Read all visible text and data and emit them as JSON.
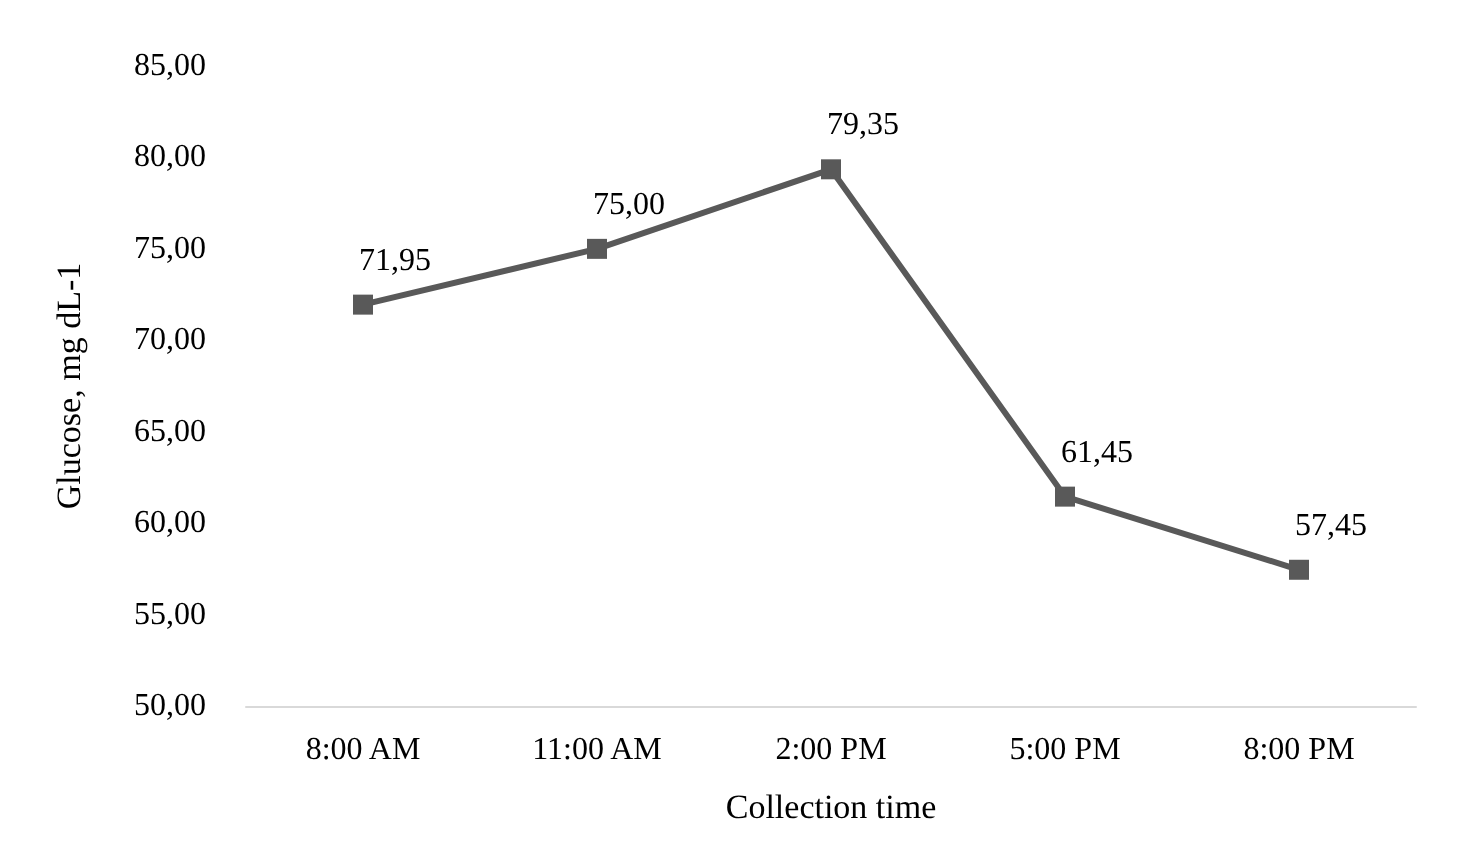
{
  "chart_data": {
    "type": "line",
    "xlabel": "Collection time",
    "ylabel": "Glucose, mg dL-1",
    "categories": [
      "8:00 AM",
      "11:00 AM",
      "2:00 PM",
      "5:00 PM",
      "8:00 PM"
    ],
    "series": [
      {
        "color": "#595959",
        "values": [
          71.95,
          75.0,
          79.35,
          61.45,
          57.45
        ],
        "value_labels": [
          "71,95",
          "75,00",
          "79,35",
          "61,45",
          "57,45"
        ]
      }
    ],
    "ylim": [
      50,
      85
    ],
    "yticks": [
      {
        "value": 50,
        "label": "50,00"
      },
      {
        "value": 55,
        "label": "55,00"
      },
      {
        "value": 60,
        "label": "60,00"
      },
      {
        "value": 65,
        "label": "65,00"
      },
      {
        "value": 70,
        "label": "70,00"
      },
      {
        "value": 75,
        "label": "75,00"
      },
      {
        "value": 80,
        "label": "80,00"
      },
      {
        "value": 85,
        "label": "85,00"
      }
    ],
    "grid": false,
    "marker": "square",
    "line_style": "solid"
  }
}
